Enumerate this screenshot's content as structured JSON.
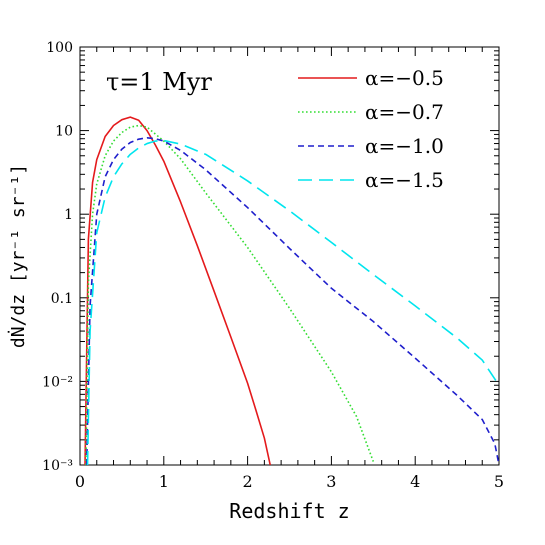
{
  "chart_data": {
    "type": "line",
    "annotation": "τ=1 Myr",
    "xlabel": "Redshift z",
    "ylabel": "dṄ/dz [yr⁻¹ sr⁻¹]",
    "xlim": [
      0,
      5
    ],
    "ylim": [
      0.001,
      100
    ],
    "yscale": "log",
    "grid": false,
    "legend_position": "top-right",
    "x_ticks": [
      {
        "value": 0,
        "label": "0"
      },
      {
        "value": 1,
        "label": "1"
      },
      {
        "value": 2,
        "label": "2"
      },
      {
        "value": 3,
        "label": "3"
      },
      {
        "value": 4,
        "label": "4"
      },
      {
        "value": 5,
        "label": "5"
      }
    ],
    "y_ticks": [
      {
        "value": 100,
        "label": "100"
      },
      {
        "value": 10,
        "label": "10"
      },
      {
        "value": 1,
        "label": "1"
      },
      {
        "value": 0.1,
        "label": "0.1"
      },
      {
        "value": 0.01,
        "label": "10⁻²"
      },
      {
        "value": 0.001,
        "label": "10⁻³"
      }
    ],
    "series": [
      {
        "name": "α=−0.5",
        "color": "#e41a1c",
        "dash": "solid",
        "x": [
          0.06,
          0.1,
          0.15,
          0.2,
          0.3,
          0.4,
          0.5,
          0.6,
          0.7,
          0.8,
          0.9,
          1.0,
          1.2,
          1.4,
          1.6,
          1.8,
          2.0,
          2.1,
          2.2,
          2.27
        ],
        "y": [
          0.001,
          0.5,
          2.4,
          4.5,
          8.5,
          11.5,
          13.5,
          14.5,
          13.3,
          10.0,
          6.7,
          4.3,
          1.4,
          0.42,
          0.12,
          0.034,
          0.0095,
          0.0045,
          0.0021,
          0.001
        ]
      },
      {
        "name": "α=−0.7",
        "color": "#33dd33",
        "dash": "dotted",
        "x": [
          0.07,
          0.1,
          0.15,
          0.2,
          0.3,
          0.4,
          0.5,
          0.6,
          0.7,
          0.8,
          1.0,
          1.2,
          1.5,
          2.0,
          2.5,
          3.0,
          3.3,
          3.5
        ],
        "y": [
          0.001,
          0.15,
          1.0,
          2.3,
          5.0,
          7.5,
          9.5,
          11.0,
          11.5,
          11.0,
          7.5,
          4.6,
          1.8,
          0.4,
          0.075,
          0.013,
          0.0038,
          0.0011
        ]
      },
      {
        "name": "α=−1.0",
        "color": "#1f1fcc",
        "dash": "dashed",
        "x": [
          0.08,
          0.12,
          0.2,
          0.3,
          0.4,
          0.5,
          0.6,
          0.7,
          0.8,
          0.9,
          1.0,
          1.2,
          1.5,
          2.0,
          2.5,
          3.0,
          3.5,
          4.0,
          4.5,
          4.8,
          4.95,
          5.0
        ],
        "y": [
          0.001,
          0.08,
          1.0,
          2.8,
          4.5,
          6.0,
          7.2,
          7.9,
          8.2,
          8.0,
          7.5,
          5.8,
          3.4,
          1.2,
          0.39,
          0.13,
          0.052,
          0.019,
          0.0068,
          0.0035,
          0.0018,
          0.001
        ]
      },
      {
        "name": "α=−1.5",
        "color": "#00e5ee",
        "dash": "longdash",
        "x": [
          0.09,
          0.12,
          0.2,
          0.3,
          0.4,
          0.5,
          0.6,
          0.7,
          0.8,
          0.9,
          1.0,
          1.2,
          1.5,
          2.0,
          2.5,
          3.0,
          3.5,
          4.0,
          4.5,
          4.8,
          5.0
        ],
        "y": [
          0.001,
          0.04,
          0.6,
          1.6,
          2.8,
          4.0,
          5.2,
          6.2,
          7.0,
          7.5,
          7.6,
          6.9,
          5.2,
          2.5,
          1.1,
          0.46,
          0.19,
          0.08,
          0.033,
          0.018,
          0.009
        ]
      }
    ]
  }
}
